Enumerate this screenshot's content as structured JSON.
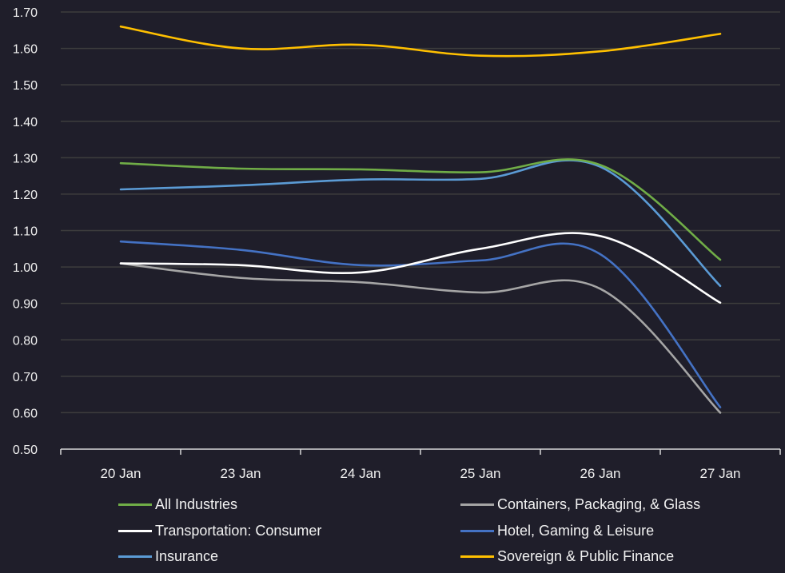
{
  "chart_data": {
    "type": "line",
    "title": "",
    "xlabel": "",
    "ylabel": "",
    "categories": [
      "20 Jan",
      "23 Jan",
      "24 Jan",
      "25 Jan",
      "26 Jan",
      "27 Jan"
    ],
    "ylim": [
      0.5,
      1.7
    ],
    "yticks": [
      "0.50",
      "0.60",
      "0.70",
      "0.80",
      "0.90",
      "1.00",
      "1.10",
      "1.20",
      "1.30",
      "1.40",
      "1.50",
      "1.60",
      "1.70"
    ],
    "grid": true,
    "legend_position": "bottom",
    "smooth": true,
    "series": [
      {
        "name": "All Industries",
        "color": "#70ad47",
        "values": [
          1.285,
          1.27,
          1.268,
          1.26,
          1.28,
          1.02
        ]
      },
      {
        "name": "Containers, Packaging, & Glass",
        "color": "#a5a5a5",
        "values": [
          1.01,
          0.97,
          0.958,
          0.93,
          0.94,
          0.6
        ]
      },
      {
        "name": "Transportation: Consumer",
        "color": "#ffffff",
        "values": [
          1.01,
          1.005,
          0.985,
          1.05,
          1.085,
          0.902
        ]
      },
      {
        "name": "Hotel, Gaming & Leisure",
        "color": "#4472c4",
        "values": [
          1.07,
          1.047,
          1.005,
          1.018,
          1.035,
          0.615
        ]
      },
      {
        "name": "Insurance",
        "color": "#5b9bd5",
        "values": [
          1.213,
          1.224,
          1.24,
          1.242,
          1.275,
          0.948
        ]
      },
      {
        "name": "Sovereign & Public Finance",
        "color": "#ffc000",
        "values": [
          1.66,
          1.6,
          1.61,
          1.58,
          1.592,
          1.64
        ]
      }
    ]
  }
}
